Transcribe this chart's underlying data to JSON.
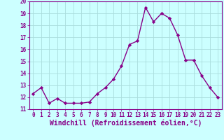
{
  "x": [
    0,
    1,
    2,
    3,
    4,
    5,
    6,
    7,
    8,
    9,
    10,
    11,
    12,
    13,
    14,
    15,
    16,
    17,
    18,
    19,
    20,
    21,
    22,
    23
  ],
  "y": [
    12.3,
    12.8,
    11.5,
    11.9,
    11.5,
    11.5,
    11.5,
    11.6,
    12.3,
    12.8,
    13.5,
    14.6,
    16.4,
    16.7,
    19.5,
    18.3,
    19.0,
    18.6,
    17.2,
    15.1,
    15.1,
    13.8,
    12.8,
    12.0
  ],
  "line_color": "#880088",
  "marker": "D",
  "marker_size": 2.2,
  "bg_color": "#ccffff",
  "grid_color": "#aadddd",
  "xlabel": "Windchill (Refroidissement éolien,°C)",
  "xlabel_color": "#880088",
  "ylim": [
    11,
    20
  ],
  "xlim_min": -0.5,
  "xlim_max": 23.5,
  "yticks": [
    11,
    12,
    13,
    14,
    15,
    16,
    17,
    18,
    19,
    20
  ],
  "xticks": [
    0,
    1,
    2,
    3,
    4,
    5,
    6,
    7,
    8,
    9,
    10,
    11,
    12,
    13,
    14,
    15,
    16,
    17,
    18,
    19,
    20,
    21,
    22,
    23
  ],
  "tick_color": "#880088",
  "tick_label_color": "#880088",
  "tick_fontsize": 5.5,
  "xlabel_fontsize": 7.0,
  "line_width": 1.0
}
